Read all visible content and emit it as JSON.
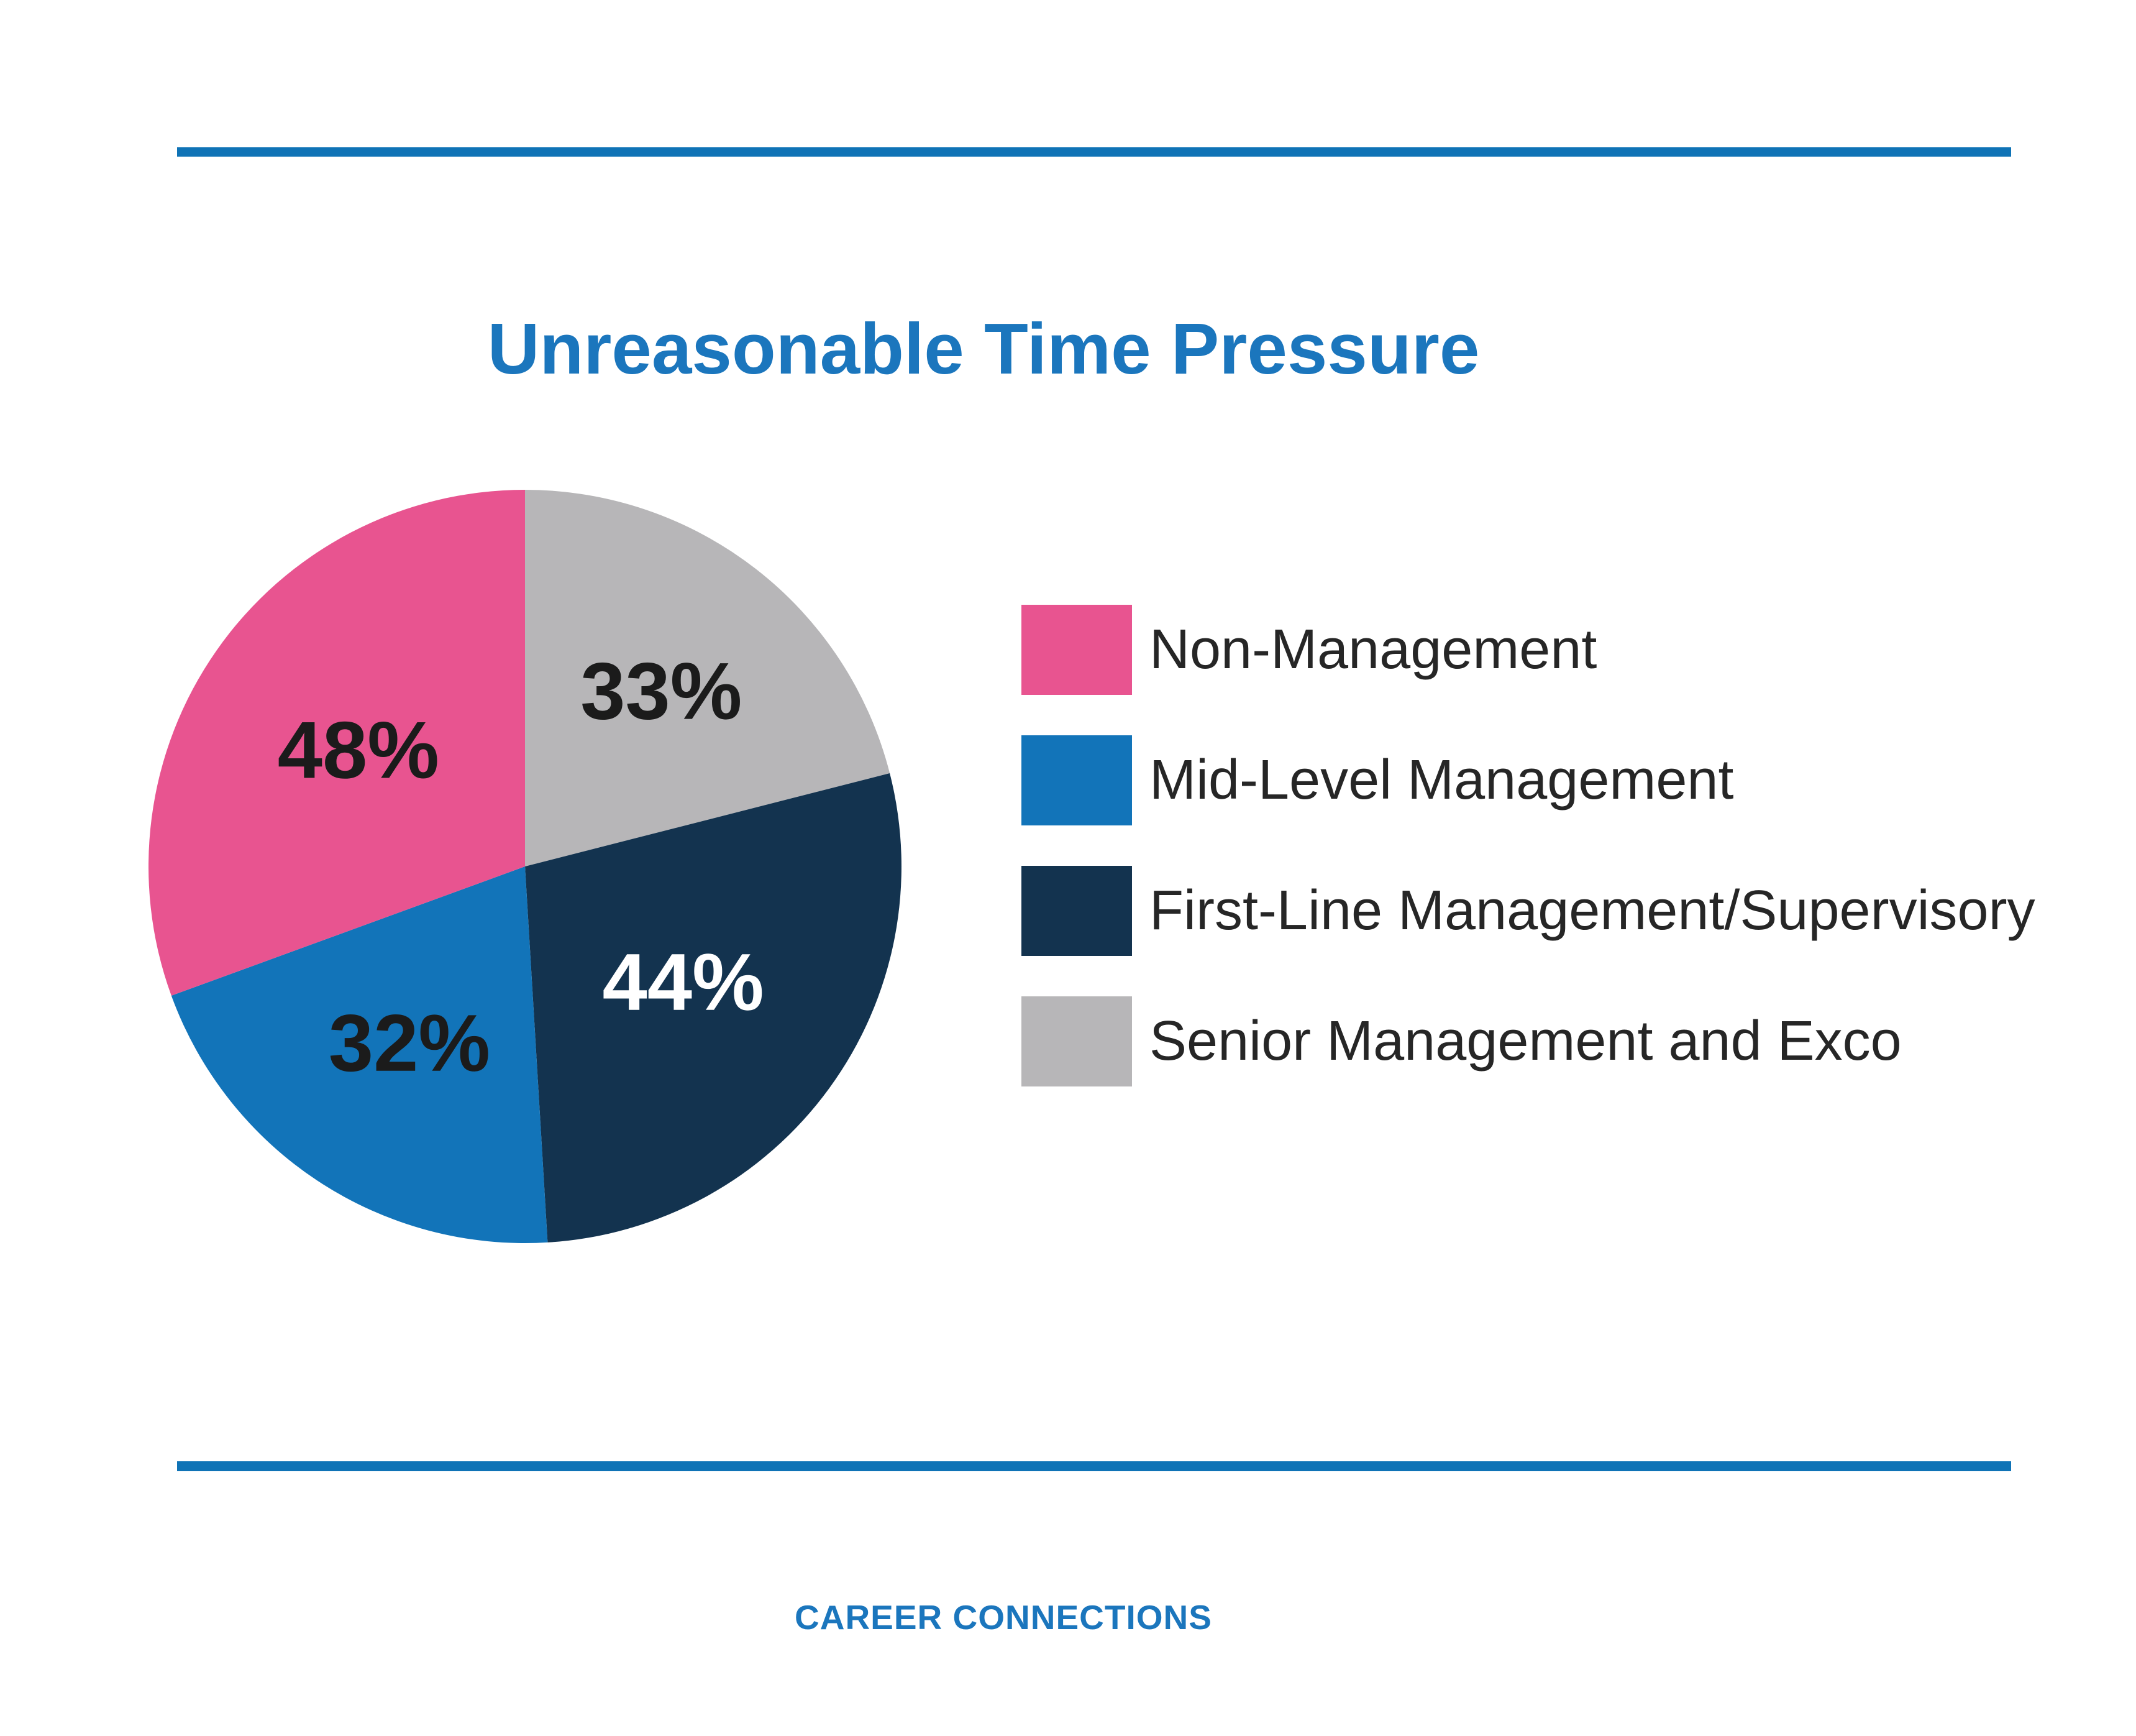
{
  "page": {
    "background": "#ffffff",
    "accent_blue": "#1b76bd",
    "rule_color": "#0f73b6"
  },
  "header": {
    "title": "Unreasonable Time Pressure"
  },
  "footer": {
    "text": "CAREER CONNECTIONS"
  },
  "chart_data": {
    "type": "pie",
    "title": "Unreasonable Time Pressure",
    "unit": "percent",
    "start_angle_deg": 0,
    "direction": "clockwise",
    "note": "Slice values sum to 157; wedge angles are proportional to values. Order below is draw order clockwise from 12 o'clock.",
    "slices": [
      {
        "label": "Senior Management and Exco",
        "value": 33,
        "display": "33%",
        "color": "#b7b6b8",
        "label_color": "#1b1b1b",
        "label_radius_frac": 0.59
      },
      {
        "label": "First-Line Management/Supervisory",
        "value": 44,
        "display": "44%",
        "color": "#13334f",
        "label_color": "#ffffff",
        "label_radius_frac": 0.52
      },
      {
        "label": "Mid-Level Management",
        "value": 32,
        "display": "32%",
        "color": "#1274b9",
        "label_color": "#1b1b1b",
        "label_radius_frac": 0.56
      },
      {
        "label": "Non-Management",
        "value": 48,
        "display": "48%",
        "color": "#e85490",
        "label_color": "#1b1b1b",
        "label_radius_frac": 0.54
      }
    ],
    "legend": {
      "position": "right",
      "items": [
        {
          "label": "Non-Management",
          "color": "#e85490"
        },
        {
          "label": "Mid-Level Management",
          "color": "#1274b9"
        },
        {
          "label": "First-Line Management/Supervisory",
          "color": "#13334f"
        },
        {
          "label": "Senior Management and Exco",
          "color": "#b7b6b8"
        }
      ]
    }
  }
}
